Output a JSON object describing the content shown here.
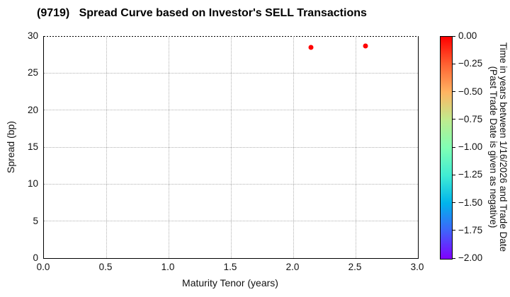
{
  "title": "(9719)   Spread Curve based on Investor's SELL Transactions",
  "chart_data": {
    "type": "scatter",
    "title": "(9719)   Spread Curve based on Investor's SELL Transactions",
    "xlabel": "Maturity Tenor (years)",
    "ylabel": "Spread (bp)",
    "xlim": [
      0.0,
      3.0
    ],
    "ylim": [
      0,
      30
    ],
    "x_ticks": [
      0.0,
      0.5,
      1.0,
      1.5,
      2.0,
      2.5,
      3.0
    ],
    "x_tick_labels": [
      "0.0",
      "0.5",
      "1.0",
      "1.5",
      "2.0",
      "2.5",
      "3.0"
    ],
    "y_ticks": [
      0,
      5,
      10,
      15,
      20,
      25,
      30
    ],
    "y_tick_labels": [
      "0",
      "5",
      "10",
      "15",
      "20",
      "25",
      "30"
    ],
    "grid": true,
    "grid_style": "dotted",
    "points": [
      {
        "x": 2.14,
        "y": 28.5,
        "time_value": 0.0,
        "color": "#ff0000"
      },
      {
        "x": 2.58,
        "y": 28.7,
        "time_value": 0.0,
        "color": "#ff0000"
      }
    ],
    "colorbar": {
      "colormap": "rainbow",
      "vmax": 0.0,
      "vmin": -2.0,
      "tick_labels": [
        "0.00",
        "−0.25",
        "−0.50",
        "−0.75",
        "−1.00",
        "−1.25",
        "−1.50",
        "−1.75",
        "−2.00"
      ],
      "label_line1": "Time in years between 1/16/2026 and Trade Date",
      "label_line2": "(Past Trade Date is given as negative)",
      "gradient_stops": [
        {
          "pos": 0.0,
          "color": "#ff0000"
        },
        {
          "pos": 0.125,
          "color": "#ff6232"
        },
        {
          "pos": 0.25,
          "color": "#ffb462"
        },
        {
          "pos": 0.375,
          "color": "#bfec8e"
        },
        {
          "pos": 0.5,
          "color": "#80ffb4"
        },
        {
          "pos": 0.625,
          "color": "#40ecd4"
        },
        {
          "pos": 0.75,
          "color": "#00b4ec"
        },
        {
          "pos": 0.875,
          "color": "#4062fa"
        },
        {
          "pos": 1.0,
          "color": "#8000ff"
        }
      ]
    },
    "colors": {
      "spine": "#000000",
      "gridline": "#b0b0b0",
      "marker": "#ff0000"
    }
  }
}
